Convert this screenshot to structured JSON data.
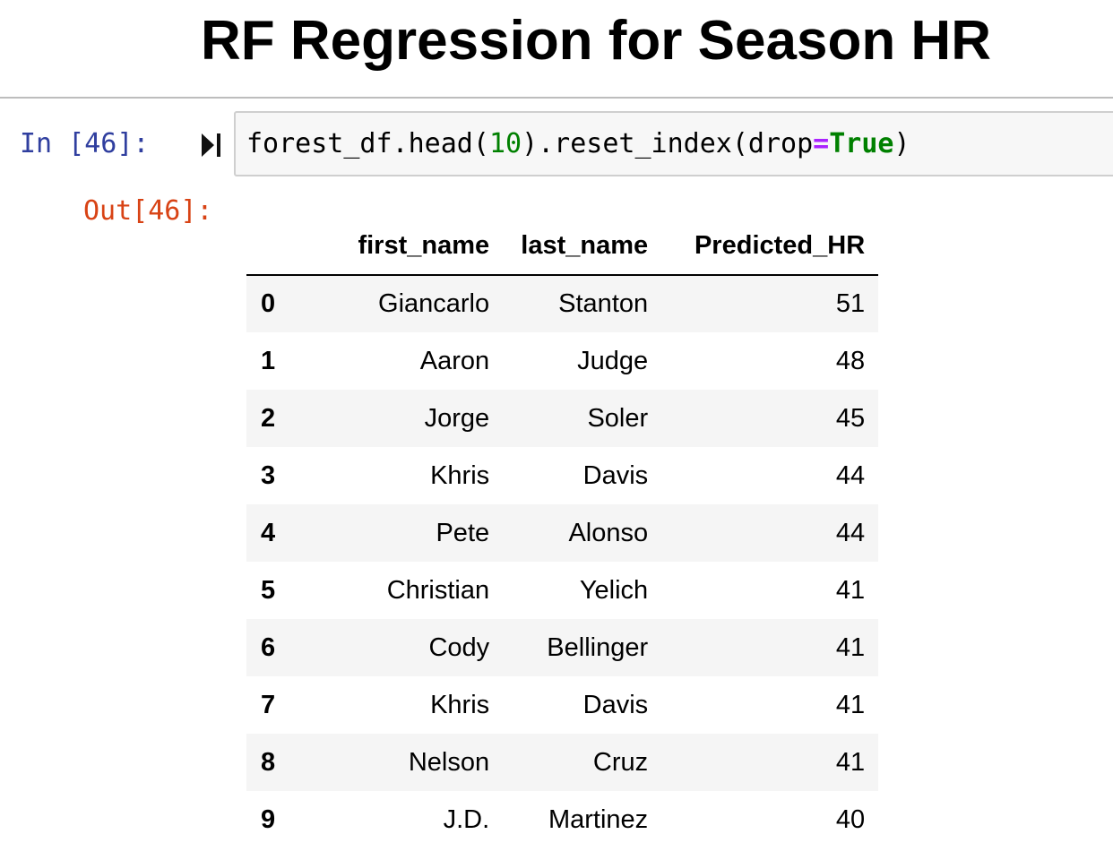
{
  "heading": "RF Regression for Season HR",
  "cell": {
    "in_prompt": "In [46]:",
    "out_prompt": "Out[46]:",
    "code": {
      "part1": "forest_df.head(",
      "num": "10",
      "part2": ").reset_index(drop",
      "op": "=",
      "kw": "True",
      "part3": ")"
    },
    "run_icon": "run-cell-icon"
  },
  "colors": {
    "in_prompt": "#303f9f",
    "out_prompt": "#d84315",
    "number": "#008000",
    "operator": "#aa22ff",
    "keyword": "#008000"
  },
  "table": {
    "columns": [
      "",
      "first_name",
      "last_name",
      "Predicted_HR"
    ],
    "rows": [
      {
        "index": "0",
        "first_name": "Giancarlo",
        "last_name": "Stanton",
        "predicted_hr": "51"
      },
      {
        "index": "1",
        "first_name": "Aaron",
        "last_name": "Judge",
        "predicted_hr": "48"
      },
      {
        "index": "2",
        "first_name": "Jorge",
        "last_name": "Soler",
        "predicted_hr": "45"
      },
      {
        "index": "3",
        "first_name": "Khris",
        "last_name": "Davis",
        "predicted_hr": "44"
      },
      {
        "index": "4",
        "first_name": "Pete",
        "last_name": "Alonso",
        "predicted_hr": "44"
      },
      {
        "index": "5",
        "first_name": "Christian",
        "last_name": "Yelich",
        "predicted_hr": "41"
      },
      {
        "index": "6",
        "first_name": "Cody",
        "last_name": "Bellinger",
        "predicted_hr": "41"
      },
      {
        "index": "7",
        "first_name": "Khris",
        "last_name": "Davis",
        "predicted_hr": "41"
      },
      {
        "index": "8",
        "first_name": "Nelson",
        "last_name": "Cruz",
        "predicted_hr": "41"
      },
      {
        "index": "9",
        "first_name": "J.D.",
        "last_name": "Martinez",
        "predicted_hr": "40"
      }
    ]
  }
}
